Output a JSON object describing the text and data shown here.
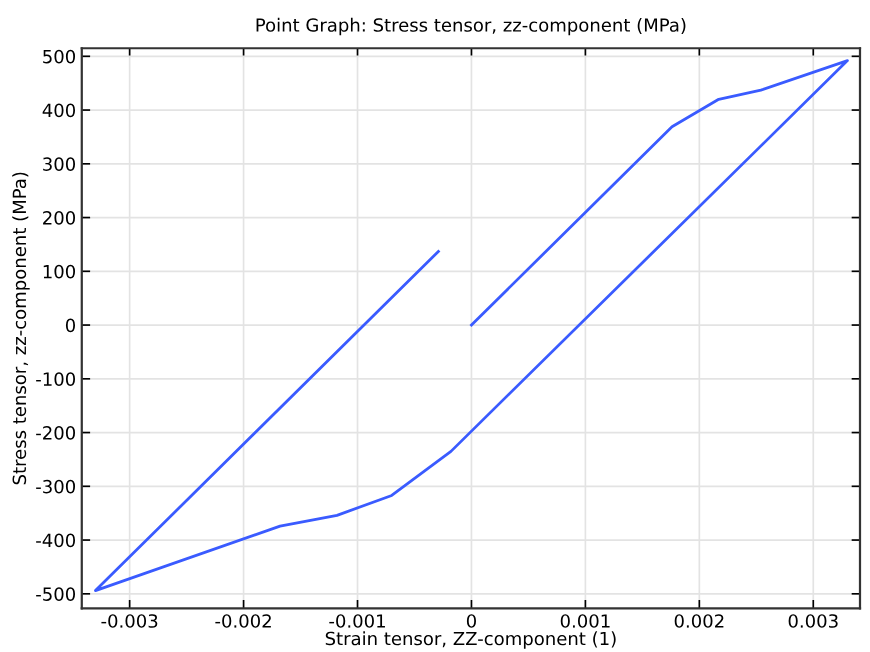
{
  "chart_data": {
    "type": "line",
    "title": "Point Graph: Stress tensor, zz-component (MPa)",
    "xlabel": "Strain tensor, ZZ-component (1)",
    "ylabel": "Stress tensor, zz-component (MPa)",
    "series": [
      {
        "color": "#3a5bff",
        "x": [
          0,
          0.00176,
          0.00217,
          0.00254,
          0.0033,
          -0.00018,
          -0.0007,
          -0.00118,
          -0.00168,
          -0.0033,
          -0.00029
        ],
        "values": [
          0,
          369,
          420,
          437,
          492,
          -235,
          -317,
          -354,
          -374,
          -494,
          137
        ]
      }
    ],
    "xlim": [
      -0.00342,
      0.00341
    ],
    "ylim": [
      -527,
      515
    ],
    "xticks": [
      -0.003,
      -0.002,
      -0.001,
      0,
      0.001,
      0.002,
      0.003
    ],
    "yticks": [
      -500,
      -400,
      -300,
      -200,
      -100,
      0,
      100,
      200,
      300,
      400,
      500
    ],
    "grid": true
  }
}
